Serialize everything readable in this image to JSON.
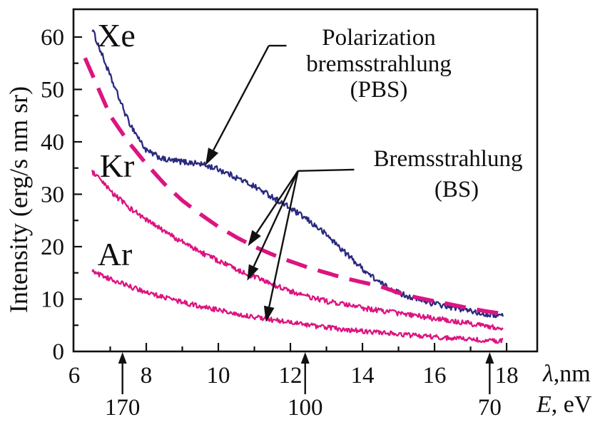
{
  "figure": {
    "ylabel": "Intensity (erg/s nm sr)",
    "lambda_symbol": "λ",
    "lambda_unit": ",nm",
    "energy_symbol": "E",
    "energy_unit": ", eV"
  },
  "annotations": {
    "pbs": {
      "lines": [
        "Polarization",
        "bremsstrahlung",
        "(PBS)"
      ],
      "connector": [
        [
          11.89,
          58.35
        ],
        [
          11.4,
          58.35
        ]
      ],
      "arrows": [
        {
          "from": [
            11.4,
            58.35
          ],
          "to": [
            9.64,
            35.5
          ]
        }
      ]
    },
    "bs": {
      "lines": [
        "Bremsstrahlung",
        "(BS)"
      ],
      "connector": [
        [
          13.77,
          34.7
        ],
        [
          12.21,
          34.45
        ]
      ],
      "arrows": [
        {
          "from": [
            12.21,
            34.45
          ],
          "to": [
            10.82,
            20.1
          ]
        },
        {
          "from": [
            12.21,
            34.45
          ],
          "to": [
            10.8,
            13.5
          ]
        },
        {
          "from": [
            12.21,
            34.45
          ],
          "to": [
            11.32,
            5.6
          ]
        }
      ]
    }
  },
  "chart_data": {
    "type": "line",
    "title": "",
    "xlabel": "λ, nm",
    "ylabel": "Intensity (erg/s nm sr)",
    "xlim": [
      6,
      18.85
    ],
    "ylim": [
      0,
      65.3
    ],
    "grid": false,
    "x_major_ticks": [
      8,
      10,
      12,
      14,
      16,
      18
    ],
    "x_minor_ticks": [
      7,
      9,
      11,
      13,
      15,
      17
    ],
    "x_tick_labels": [
      6,
      8,
      10,
      12,
      14,
      16,
      18
    ],
    "y_major_ticks": [
      10,
      20,
      30,
      40,
      50,
      60
    ],
    "y_minor_ticks": [
      5,
      15,
      25,
      35,
      45,
      55
    ],
    "y_tick_labels": [
      0,
      10,
      20,
      30,
      40,
      50,
      60
    ],
    "colors": {
      "experiment": "#2b2a80",
      "bremsstrahlung": "#dc1480",
      "frame": "#111111"
    },
    "secondary_axis": {
      "label": "E, eV",
      "markers": [
        {
          "value": "170",
          "lambda": 7.34
        },
        {
          "value": "100",
          "lambda": 12.41
        },
        {
          "value": "70",
          "lambda": 17.53
        }
      ]
    },
    "series": [
      {
        "name": "Xe",
        "style": "noisy",
        "color": "#2b2a80",
        "x": [
          6.5,
          7,
          7.5,
          8,
          8.5,
          9,
          9.5,
          10,
          10.5,
          11,
          11.5,
          12,
          12.5,
          13,
          13.5,
          14,
          14.5,
          15,
          15.5,
          16,
          16.5,
          17,
          17.5,
          17.9
        ],
        "values": [
          61.5,
          52.5,
          44,
          38.3,
          36.6,
          36.2,
          35.8,
          34.8,
          33.2,
          31.5,
          29.5,
          27.3,
          25,
          22.3,
          19,
          15.8,
          13,
          11.2,
          10,
          9.1,
          8.4,
          7.7,
          7.1,
          6.8
        ]
      },
      {
        "name": "Xe bremsstrahlung (BS)",
        "style": "dashed",
        "color": "#dc1480",
        "x": [
          6.3,
          7,
          7.5,
          8,
          8.5,
          9,
          9.5,
          10,
          10.5,
          11,
          11.5,
          12,
          12.5,
          13,
          13.5,
          14,
          14.5,
          15,
          15.5,
          16,
          16.5,
          17,
          17.5,
          17.9
        ],
        "values": [
          56,
          45,
          40,
          35.8,
          32,
          28.8,
          26.2,
          23.8,
          21.8,
          20,
          18.5,
          17.2,
          16,
          15,
          14,
          13.2,
          12.4,
          11.2,
          10.3,
          9.6,
          8.9,
          8.2,
          7.6,
          7.2
        ]
      },
      {
        "name": "Kr",
        "style": "noisy",
        "color": "#dc1480",
        "x": [
          6.5,
          7,
          7.5,
          8,
          8.5,
          9,
          9.5,
          10,
          10.5,
          11,
          11.5,
          12,
          12.5,
          13,
          13.5,
          14,
          14.5,
          15,
          15.5,
          16,
          16.5,
          17,
          17.5,
          17.9
        ],
        "values": [
          34.3,
          30.6,
          27.6,
          25.1,
          22.9,
          20.9,
          19,
          17.3,
          15.7,
          14.2,
          12.8,
          11.5,
          10.4,
          9.6,
          8.9,
          8.3,
          7.8,
          7.3,
          6.8,
          6.3,
          5.8,
          5.3,
          4.8,
          4.4
        ]
      },
      {
        "name": "Ar",
        "style": "noisy",
        "color": "#dc1480",
        "x": [
          6.5,
          7,
          7.5,
          8,
          8.5,
          9,
          9.5,
          10,
          10.5,
          11,
          11.5,
          12,
          12.5,
          13,
          13.5,
          14,
          14.5,
          15,
          15.5,
          16,
          16.5,
          17,
          17.5,
          17.9
        ],
        "values": [
          15.3,
          13.8,
          12.5,
          11.3,
          10.3,
          9.4,
          8.6,
          7.9,
          7.2,
          6.6,
          6.0,
          5.5,
          5.0,
          4.6,
          4.2,
          3.9,
          3.6,
          3.3,
          3.0,
          2.8,
          2.5,
          2.3,
          2.1,
          2.0
        ]
      }
    ]
  }
}
